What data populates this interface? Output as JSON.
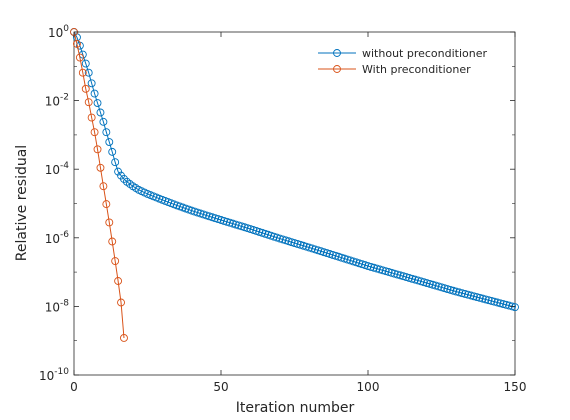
{
  "chart_data": {
    "type": "line",
    "title": "",
    "xlabel": "Iteration number",
    "ylabel": "Relative residual",
    "xlim": [
      0,
      150
    ],
    "ylim": [
      1e-10,
      1
    ],
    "yscale": "log",
    "grid": false,
    "legend_position": "top-right",
    "x_ticks": [
      0,
      50,
      100,
      150
    ],
    "y_ticks": [
      {
        "base": "10",
        "exp": "0"
      },
      {
        "base": "10",
        "exp": "-2"
      },
      {
        "base": "10",
        "exp": "-4"
      },
      {
        "base": "10",
        "exp": "-6"
      },
      {
        "base": "10",
        "exp": "-8"
      },
      {
        "base": "10",
        "exp": "-10"
      }
    ],
    "series": [
      {
        "name": "without preconditioner",
        "color": "#0072BD",
        "marker": "circle",
        "points": [
          [
            0,
            1.0
          ],
          [
            1,
            0.7
          ],
          [
            2,
            0.4
          ],
          [
            3,
            0.22
          ],
          [
            4,
            0.12
          ],
          [
            5,
            0.065
          ],
          [
            6,
            0.032
          ],
          [
            7,
            0.016
          ],
          [
            8,
            0.0085
          ],
          [
            9,
            0.0045
          ],
          [
            10,
            0.0024
          ],
          [
            11,
            0.0012
          ],
          [
            12,
            0.00062
          ],
          [
            13,
            0.00032
          ],
          [
            14,
            0.00016
          ],
          [
            15,
            8.5e-05
          ],
          [
            16,
            6.5e-05
          ],
          [
            17,
            5.2e-05
          ],
          [
            18,
            4.3e-05
          ],
          [
            19,
            3.7e-05
          ],
          [
            20,
            3.2e-05
          ],
          [
            22,
            2.5e-05
          ],
          [
            25,
            1.9e-05
          ],
          [
            30,
            1.28e-05
          ],
          [
            35,
            8.8e-06
          ],
          [
            40,
            6.2e-06
          ],
          [
            45,
            4.5e-06
          ],
          [
            50,
            3.3e-06
          ],
          [
            60,
            1.8e-06
          ],
          [
            70,
            9.5e-07
          ],
          [
            80,
            5.2e-07
          ],
          [
            90,
            2.8e-07
          ],
          [
            100,
            1.5e-07
          ],
          [
            110,
            8.5e-08
          ],
          [
            120,
            4.8e-08
          ],
          [
            130,
            2.7e-08
          ],
          [
            140,
            1.6e-08
          ],
          [
            150,
            9.5e-09
          ]
        ]
      },
      {
        "name": "With preconditioner",
        "color": "#D95319",
        "marker": "circle",
        "points": [
          [
            0,
            1.0
          ],
          [
            1,
            0.45
          ],
          [
            2,
            0.18
          ],
          [
            3,
            0.065
          ],
          [
            4,
            0.022
          ],
          [
            5,
            0.009
          ],
          [
            6,
            0.0032
          ],
          [
            7,
            0.0012
          ],
          [
            8,
            0.00038
          ],
          [
            9,
            0.00011
          ],
          [
            10,
            3.2e-05
          ],
          [
            11,
            9.6e-06
          ],
          [
            12,
            2.8e-06
          ],
          [
            13,
            7.8e-07
          ],
          [
            14,
            2.1e-07
          ],
          [
            15,
            5.5e-08
          ],
          [
            16,
            1.3e-08
          ],
          [
            17,
            1.2e-09
          ]
        ]
      }
    ]
  }
}
